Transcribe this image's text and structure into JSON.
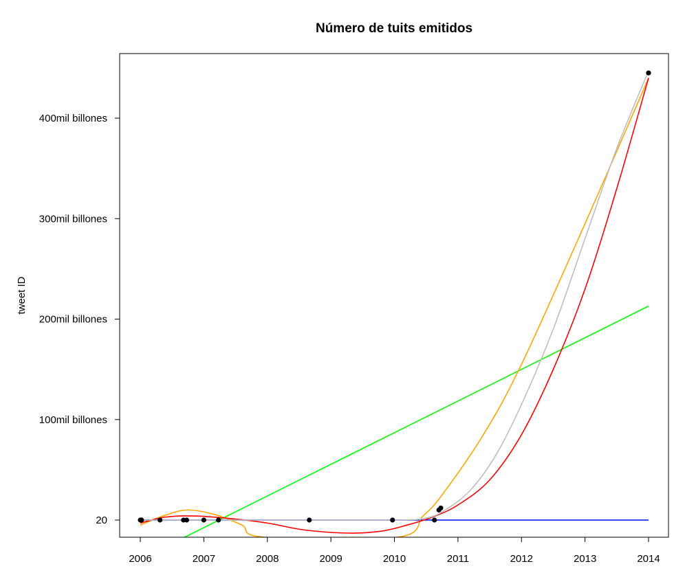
{
  "chart_data": {
    "type": "scatter",
    "title": "Número de tuits emitidos",
    "xlabel": "",
    "ylabel": "tweet ID",
    "xlim": [
      2006,
      2014
    ],
    "ylim": [
      -17000000000,
      465000000000
    ],
    "x_ticks": [
      "2006",
      "2007",
      "2008",
      "2009",
      "2010",
      "2011",
      "2012",
      "2013",
      "2014"
    ],
    "y_ticks": [
      {
        "value": 20,
        "label": "20"
      },
      {
        "value": 100000000000,
        "label": "100mil billones"
      },
      {
        "value": 200000000000,
        "label": "200mil billones"
      },
      {
        "value": 300000000000,
        "label": "300mil billones"
      },
      {
        "value": 400000000000,
        "label": "400mil billones"
      }
    ],
    "grid": false,
    "points": [
      {
        "x": 2006.0,
        "y": 20
      },
      {
        "x": 2006.02,
        "y": 0
      },
      {
        "x": 2006.31,
        "y": 0
      },
      {
        "x": 2006.68,
        "y": 0
      },
      {
        "x": 2006.73,
        "y": 0
      },
      {
        "x": 2007.0,
        "y": 0
      },
      {
        "x": 2007.23,
        "y": 0
      },
      {
        "x": 2008.66,
        "y": 0
      },
      {
        "x": 2009.97,
        "y": 0
      },
      {
        "x": 2010.63,
        "y": 0
      },
      {
        "x": 2010.7,
        "y": 10000000000
      },
      {
        "x": 2010.73,
        "y": 12000000000
      },
      {
        "x": 2014.0,
        "y": 445000000000
      }
    ],
    "series": [
      {
        "color": "#00ff00",
        "kind": "line",
        "x": [
          2006.0,
          2014.0
        ],
        "y": [
          -39000000000,
          213000000000
        ]
      },
      {
        "color": "#0000ff",
        "kind": "line",
        "x": [
          2006.0,
          2014.0
        ],
        "y": [
          0,
          0
        ]
      },
      {
        "color": "#ffa500",
        "kind": "curve",
        "x": [
          2006.0,
          2006.4,
          2006.75,
          2007.2,
          2007.6,
          2007.95,
          2010.05,
          2010.45,
          2010.75,
          2011.4,
          2012.0,
          2013.0,
          2014.0
        ],
        "y": [
          -5000000000,
          5000000000,
          10000000000,
          5000000000,
          -5000000000,
          -17000000000,
          -17000000000,
          4000000000,
          25000000000,
          85000000000,
          155000000000,
          295000000000,
          440000000000
        ]
      },
      {
        "color": "#ff0000",
        "kind": "curve",
        "x": [
          2006.0,
          2006.4,
          2006.9,
          2007.5,
          2008.0,
          2008.6,
          2009.3,
          2009.8,
          2010.2,
          2010.6,
          2011.0,
          2011.5,
          2012.0,
          2012.5,
          2013.0,
          2013.5,
          2014.0
        ],
        "y": [
          -3000000000,
          3000000000,
          4000000000,
          1000000000,
          -3000000000,
          -10000000000,
          -13000000000,
          -11000000000,
          -5000000000,
          3000000000,
          15000000000,
          40000000000,
          85000000000,
          150000000000,
          230000000000,
          330000000000,
          440000000000
        ]
      },
      {
        "color": "#bebebe",
        "kind": "curve",
        "x": [
          2006.0,
          2008.0,
          2010.0,
          2010.5,
          2010.8,
          2011.2,
          2011.6,
          2012.0,
          2012.5,
          2013.0,
          2013.5,
          2014.0
        ],
        "y": [
          0,
          0,
          0,
          2000000000,
          10000000000,
          30000000000,
          65000000000,
          115000000000,
          190000000000,
          280000000000,
          370000000000,
          447000000000
        ]
      }
    ]
  }
}
